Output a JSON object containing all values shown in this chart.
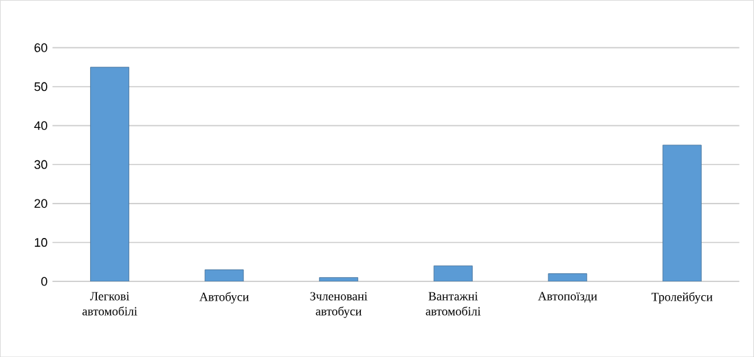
{
  "chart_data": {
    "type": "bar",
    "categories": [
      "Легкові автомобілі",
      "Автобуси",
      "Зчленовані автобуси",
      "Вантажні автомобілі",
      "Автопоїзди",
      "Тролейбуси"
    ],
    "values": [
      55,
      3,
      1,
      4,
      2,
      35
    ],
    "color": "#5b9bd5",
    "ylim": [
      0,
      60
    ],
    "yticks": [
      0,
      10,
      20,
      30,
      40,
      50,
      60
    ],
    "grid": "y"
  }
}
